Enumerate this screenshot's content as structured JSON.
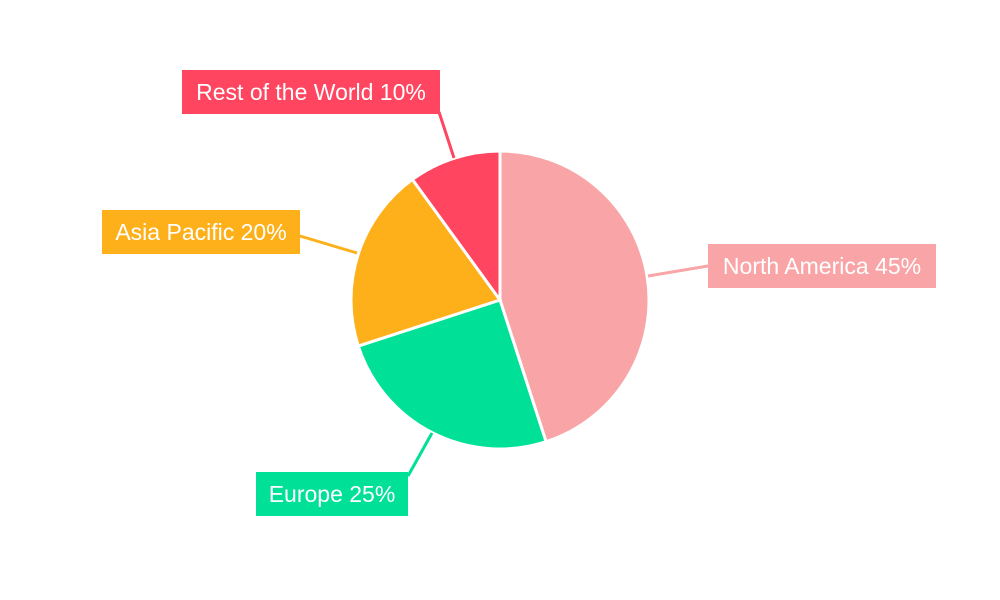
{
  "chart_data": {
    "type": "pie",
    "title": "",
    "start_angle": "top",
    "direction": "clockwise",
    "categories": [
      "North America",
      "Europe",
      "Asia Pacific",
      "Rest of the World"
    ],
    "values": [
      45,
      25,
      20,
      10
    ],
    "labels": [
      "North America 45%",
      "Europe 25%",
      "Asia Pacific 20%",
      "Rest of the World 10%"
    ],
    "colors": [
      "#F9A5A7",
      "#00E096",
      "#FDB01A",
      "#FF4560"
    ]
  }
}
